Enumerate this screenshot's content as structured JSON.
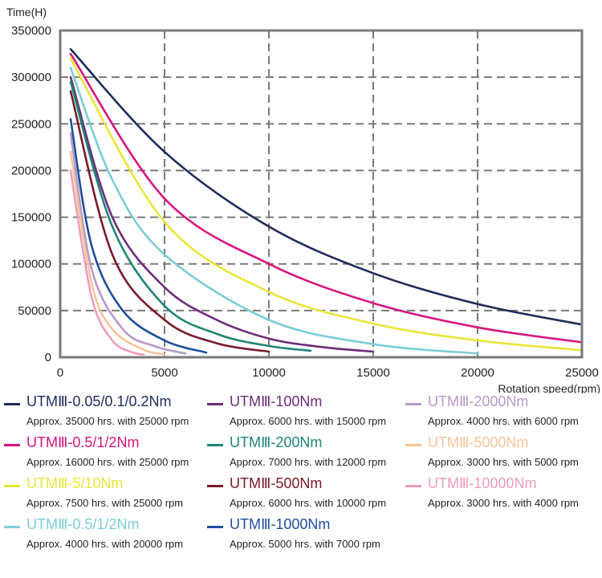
{
  "chart_data": {
    "type": "line",
    "title": "",
    "ylabel": "Time(H)",
    "xlabel": "Rotation speed(rpm)",
    "xlim": [
      0,
      25000
    ],
    "ylim": [
      0,
      350000
    ],
    "xticks": [
      "0",
      "5000",
      "10000",
      "15000",
      "20000",
      "25000"
    ],
    "yticks": [
      "0",
      "50000",
      "100000",
      "150000",
      "200000",
      "250000",
      "300000",
      "350000"
    ],
    "grid": true,
    "grid_style": "dashed",
    "legend_position": "bottom",
    "series": [
      {
        "name": "UTMⅢ-0.05/0.1/0.2Nm",
        "note": "Approx. 35000 hrs. with 25000 rpm",
        "color": "#1f2d5a",
        "x": [
          500,
          5000,
          10000,
          15000,
          20000,
          25000
        ],
        "y": [
          330000,
          220000,
          140000,
          90000,
          57000,
          35000
        ]
      },
      {
        "name": "UTMⅢ-0.5/1/2Nm",
        "note": "Approx. 16000 hrs. with 25000 rpm",
        "color": "#d6157f",
        "x": [
          500,
          5000,
          10000,
          15000,
          20000,
          25000
        ],
        "y": [
          325000,
          170000,
          100000,
          58000,
          32000,
          16000
        ]
      },
      {
        "name": "UTMⅢ-5/10Nm",
        "note": "Approx. 7500 hrs. with 25000 rpm",
        "color": "#e8e63a",
        "x": [
          500,
          5000,
          10000,
          15000,
          20000,
          25000
        ],
        "y": [
          320000,
          145000,
          70000,
          36000,
          18000,
          7500
        ]
      },
      {
        "name": "UTMⅢ-0.5/1/2Nm",
        "note": "Approx. 4000 hrs. with 20000 rpm",
        "color": "#7ccdd6",
        "x": [
          500,
          2500,
          5000,
          10000,
          15000,
          20000
        ],
        "y": [
          310000,
          190000,
          110000,
          40000,
          14000,
          4000
        ]
      },
      {
        "name": "UTMⅢ-100Nm",
        "note": "Approx. 6000 hrs. with 15000 rpm",
        "color": "#6e2b7a",
        "x": [
          500,
          2500,
          5000,
          7500,
          10000,
          12500,
          15000
        ],
        "y": [
          300000,
          150000,
          75000,
          40000,
          20000,
          11000,
          6000
        ]
      },
      {
        "name": "UTMⅢ-200Nm",
        "note": "Approx. 7000 hrs. with 12000 rpm",
        "color": "#1f8575",
        "x": [
          500,
          2500,
          5000,
          7500,
          10000,
          12000
        ],
        "y": [
          295000,
          140000,
          55000,
          25000,
          12000,
          7000
        ]
      },
      {
        "name": "UTMⅢ-500Nm",
        "note": "Approx. 6000 hrs. with 10000 rpm",
        "color": "#7a1a2a",
        "x": [
          500,
          2500,
          5000,
          7500,
          10000
        ],
        "y": [
          285000,
          110000,
          40000,
          15000,
          6000
        ]
      },
      {
        "name": "UTMⅢ-1000Nm",
        "note": "Approx. 5000 hrs. with 7000 rpm",
        "color": "#1f4e9a",
        "x": [
          500,
          1500,
          3000,
          5000,
          7000
        ],
        "y": [
          255000,
          120000,
          50000,
          18000,
          5000
        ]
      },
      {
        "name": "UTMⅢ-2000Nm",
        "note": "Approx. 4000 hrs. with 6000 rpm",
        "color": "#b69ac8",
        "x": [
          500,
          1500,
          3000,
          4500,
          6000
        ],
        "y": [
          240000,
          95000,
          30000,
          12000,
          4000
        ]
      },
      {
        "name": "UTMⅢ-5000Nm",
        "note": "Approx. 3000 hrs. with 5000 rpm",
        "color": "#f6c49a",
        "x": [
          500,
          1500,
          2500,
          4000,
          5000
        ],
        "y": [
          220000,
          80000,
          30000,
          8000,
          3000
        ]
      },
      {
        "name": "UTMⅢ-10000Nm",
        "note": "Approx. 3000 hrs. with 4000 rpm",
        "color": "#ef9cbd",
        "x": [
          500,
          1500,
          2500,
          3500,
          4000
        ],
        "y": [
          200000,
          65000,
          18000,
          5000,
          3000
        ]
      }
    ]
  }
}
